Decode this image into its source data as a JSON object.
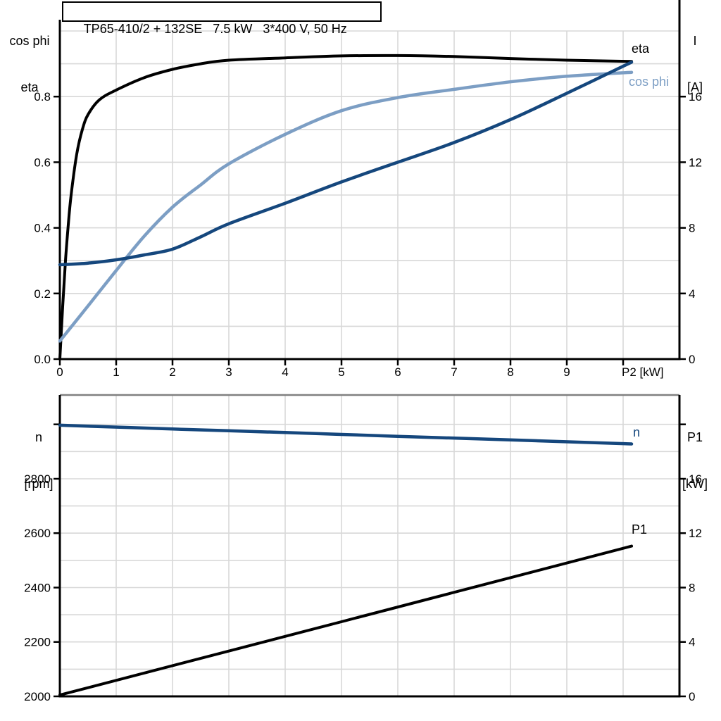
{
  "colors": {
    "black": "#000000",
    "dark_blue": "#15477D",
    "light_blue": "#7C9EC4",
    "grid": "#D8D8D8",
    "frame_gray": "#808080",
    "axis": "#000000"
  },
  "chart_data": [
    {
      "id": "motor-performance",
      "type": "line",
      "title": "TP65-410/2 + 132SE   7.5 kW   3*400 V, 50 Hz",
      "x_axis": {
        "label": "P2 [kW]",
        "min": 0,
        "max": 11,
        "tick_values": [
          0,
          1,
          2,
          3,
          4,
          5,
          6,
          7,
          8,
          9
        ],
        "tick_labels": [
          "0",
          "1",
          "2",
          "3",
          "4",
          "5",
          "6",
          "7",
          "8",
          "9"
        ],
        "extra_ticks": [
          10
        ],
        "grid_values": [
          1,
          2,
          3,
          4,
          5,
          6,
          7,
          8,
          9,
          10
        ]
      },
      "y_left": {
        "title_lines": [
          "cos phi",
          "eta"
        ],
        "min": 0,
        "max": 1.0,
        "tick_values": [
          0,
          0.2,
          0.4,
          0.6,
          0.8
        ],
        "tick_labels": [
          "0.0",
          "0.2",
          "0.4",
          "0.6",
          "0.8"
        ],
        "extra_ticks": [],
        "grid_values": [
          0.1,
          0.2,
          0.3,
          0.4,
          0.5,
          0.6,
          0.7,
          0.8,
          0.9,
          1.0
        ]
      },
      "y_right": {
        "title_lines": [
          "I",
          "[A]"
        ],
        "min": 0,
        "max": 20,
        "tick_values": [
          0,
          4,
          8,
          12,
          16
        ],
        "tick_labels": [
          "0",
          "4",
          "8",
          "12",
          "16"
        ],
        "extra_ticks": []
      },
      "series": [
        {
          "name": "eta",
          "slug": "eta",
          "axis": "left",
          "color_key": "black",
          "width": 4,
          "points": [
            [
              0,
              0
            ],
            [
              0.05,
              0.16
            ],
            [
              0.1,
              0.3
            ],
            [
              0.15,
              0.41
            ],
            [
              0.2,
              0.5
            ],
            [
              0.3,
              0.625
            ],
            [
              0.4,
              0.7
            ],
            [
              0.5,
              0.745
            ],
            [
              0.7,
              0.79
            ],
            [
              1,
              0.82
            ],
            [
              1.5,
              0.858
            ],
            [
              2,
              0.883
            ],
            [
              2.5,
              0.9
            ],
            [
              3,
              0.911
            ],
            [
              4,
              0.918
            ],
            [
              5,
              0.924
            ],
            [
              6,
              0.925
            ],
            [
              7,
              0.922
            ],
            [
              8,
              0.916
            ],
            [
              9,
              0.911
            ],
            [
              10.15,
              0.907
            ]
          ],
          "label": {
            "text": "eta",
            "x": 10.15,
            "y": 0.9335
          }
        },
        {
          "name": "cos phi",
          "slug": "cos-phi",
          "axis": "left",
          "color_key": "light_blue",
          "width": 4.5,
          "points": [
            [
              0,
              0.055
            ],
            [
              0.5,
              0.162
            ],
            [
              1,
              0.27
            ],
            [
              1.5,
              0.375
            ],
            [
              2,
              0.463
            ],
            [
              2.5,
              0.531
            ],
            [
              3,
              0.595
            ],
            [
              4,
              0.685
            ],
            [
              5,
              0.757
            ],
            [
              6,
              0.797
            ],
            [
              7,
              0.822
            ],
            [
              8,
              0.845
            ],
            [
              9,
              0.862
            ],
            [
              10.15,
              0.874
            ]
          ],
          "label": {
            "text": "cos phi",
            "x": 10.1,
            "y": 0.8326
          }
        },
        {
          "name": "I",
          "slug": "current",
          "axis": "right",
          "color_key": "dark_blue",
          "width": 4.5,
          "points": [
            [
              0,
              5.75
            ],
            [
              0.5,
              5.85
            ],
            [
              1,
              6.05
            ],
            [
              1.5,
              6.35
            ],
            [
              2,
              6.7
            ],
            [
              2.5,
              7.45
            ],
            [
              3,
              8.25
            ],
            [
              4,
              9.5
            ],
            [
              5,
              10.8
            ],
            [
              6,
              12.0
            ],
            [
              7,
              13.2
            ],
            [
              8,
              14.6
            ],
            [
              9,
              16.2
            ],
            [
              10.15,
              18.1
            ]
          ],
          "label": null
        }
      ]
    },
    {
      "id": "speed-and-input-power",
      "type": "line",
      "title": "",
      "x_axis": {
        "label": "",
        "min": 0,
        "max": 11,
        "tick_values": [],
        "tick_labels": [],
        "extra_ticks": [],
        "grid_values": [
          1,
          2,
          3,
          4,
          5,
          6,
          7,
          8,
          9,
          10
        ]
      },
      "y_left": {
        "title_lines": [
          "n",
          "[rpm]"
        ],
        "min": 2000,
        "max": 3108,
        "tick_values": [
          2000,
          2200,
          2400,
          2600,
          2800
        ],
        "tick_labels": [
          "2000",
          "2200",
          "2400",
          "2600",
          "2800"
        ],
        "extra_ticks": [
          3000
        ],
        "grid_values": [
          2100,
          2200,
          2300,
          2400,
          2500,
          2600,
          2700,
          2800,
          2900,
          3000
        ]
      },
      "y_right": {
        "title_lines": [
          "P1",
          "[kW]"
        ],
        "min": 0,
        "max": 22.16,
        "tick_values": [
          0,
          4,
          8,
          12,
          16
        ],
        "tick_labels": [
          "0",
          "4",
          "8",
          "12",
          "16"
        ],
        "extra_ticks": [
          20
        ]
      },
      "series": [
        {
          "name": "n",
          "slug": "speed",
          "axis": "left",
          "color_key": "dark_blue",
          "width": 4.5,
          "points": [
            [
              0,
              2997
            ],
            [
              2,
              2983
            ],
            [
              4,
              2970
            ],
            [
              6,
              2956
            ],
            [
              8,
              2943
            ],
            [
              10.15,
              2928
            ]
          ],
          "label": {
            "text": "n",
            "x": 10.175,
            "y": 2955
          }
        },
        {
          "name": "P1",
          "slug": "input-power",
          "axis": "right",
          "color_key": "black",
          "width": 4,
          "points": [
            [
              0,
              0.1
            ],
            [
              5,
              5.49
            ],
            [
              10.15,
              11.05
            ]
          ],
          "label": {
            "text": "P1",
            "x": 10.15,
            "y": 11.96
          }
        }
      ]
    }
  ]
}
